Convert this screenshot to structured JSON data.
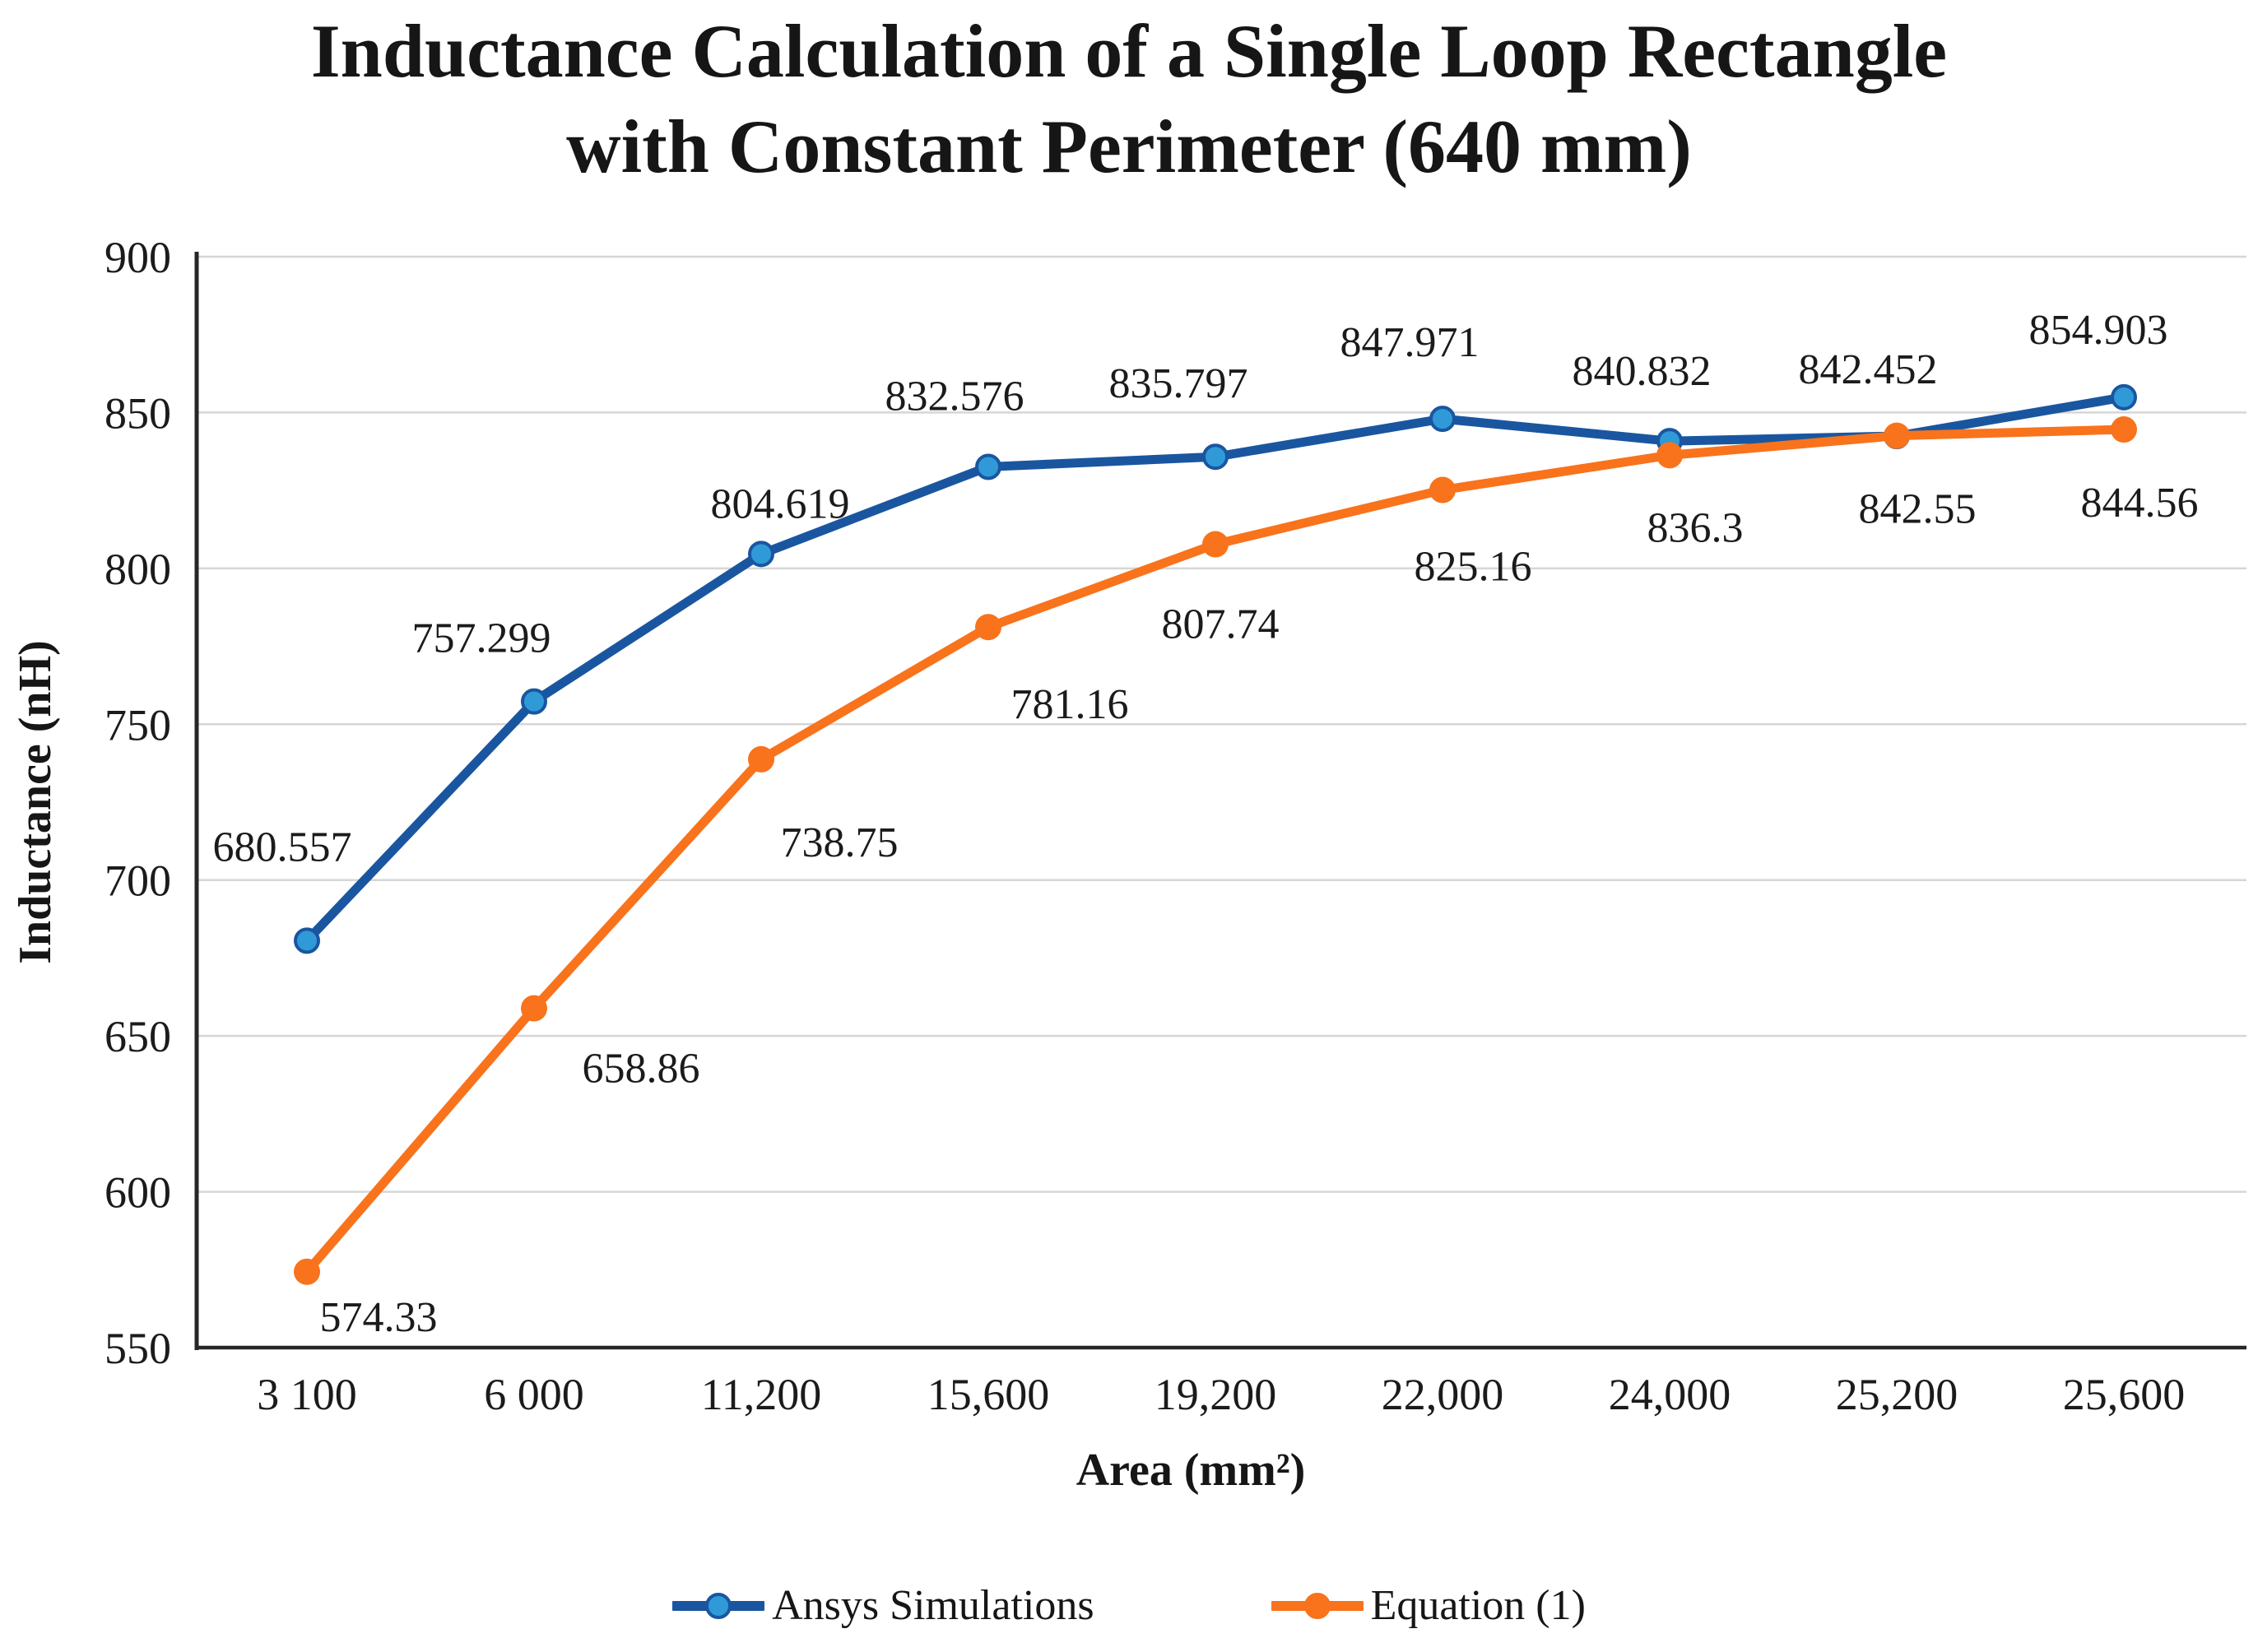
{
  "chart_data": {
    "type": "line",
    "title": "Inductance Calculation of a Single Loop Rectangle with Constant Perimeter (640 mm)",
    "title_lines": [
      "Inductance Calculation of a Single Loop Rectangle",
      "with Constant Perimeter (640 mm)"
    ],
    "xlabel": "Area (mm²)",
    "ylabel": "Inductance (nH)",
    "categories": [
      "3 100",
      "6 000",
      "11,200",
      "15,600",
      "19,200",
      "22,000",
      "24,000",
      "25,200",
      "25,600"
    ],
    "ylim": [
      550,
      900
    ],
    "y_ticks": [
      900,
      850,
      800,
      750,
      700,
      650,
      600,
      550
    ],
    "grid": "horizontal",
    "legend_position": "bottom-center",
    "colors": {
      "gridline": "#d6d6d6",
      "axis_line": "#262626",
      "text": "#1b1b1b"
    },
    "series": [
      {
        "name": "Ansys Simulations",
        "line_color": "#1a56a0",
        "marker_color": "#2f9ad7",
        "marker": "circle",
        "label_position": "above",
        "values": [
          680.557,
          757.299,
          804.619,
          832.576,
          835.797,
          847.971,
          840.832,
          842.452,
          854.903
        ],
        "data_labels": [
          "680.557",
          "757.299",
          "804.619",
          "832.576",
          "835.797",
          "847.971",
          "840.832",
          "842.452",
          "854.903"
        ]
      },
      {
        "name": "Equation (1)",
        "line_color": "#f8731c",
        "marker_color": "#f8731c",
        "marker": "circle",
        "label_position": "below",
        "values": [
          574.33,
          658.86,
          738.75,
          781.16,
          807.74,
          825.16,
          836.3,
          842.55,
          844.56
        ],
        "data_labels": [
          "574.33",
          "658.86",
          "738.75",
          "781.16",
          "807.74",
          "825.16",
          "836.3",
          "842.55",
          "844.56"
        ]
      }
    ]
  }
}
